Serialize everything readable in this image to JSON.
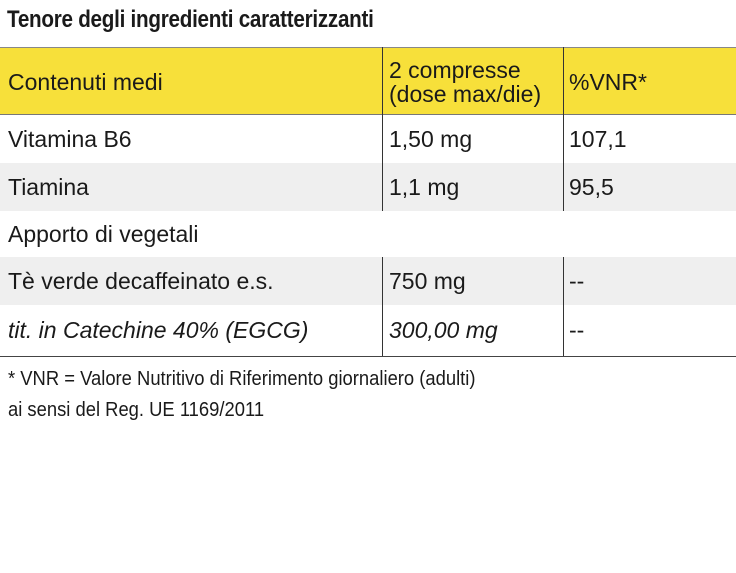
{
  "title": "Tenore degli ingredienti caratterizzanti",
  "colors": {
    "header_bg": "#f7e03a",
    "stripe_bg": "#efefef"
  },
  "table": {
    "headers": {
      "col1": "Contenuti medi",
      "col2_line1": "2 compresse",
      "col2_line2": "(dose max/die)",
      "col3": "%VNR*"
    },
    "rows": [
      {
        "name": "Vitamina B6",
        "amount": "1,50 mg",
        "vnr": "107,1"
      },
      {
        "name": "Tiamina",
        "amount": "1,1 mg",
        "vnr": "95,5"
      }
    ],
    "section": "Apporto di vegetali",
    "section_rows": [
      {
        "name": "Tè verde decaffeinato e.s.",
        "amount": "750 mg",
        "vnr": "--"
      },
      {
        "name": "tit. in Catechine 40% (EGCG)",
        "amount": "300,00 mg",
        "vnr": "--"
      }
    ]
  },
  "footnote": {
    "line1": "* VNR = Valore Nutritivo di Riferimento giornaliero (adulti)",
    "line2": "ai sensi del Reg. UE 1169/2011"
  }
}
